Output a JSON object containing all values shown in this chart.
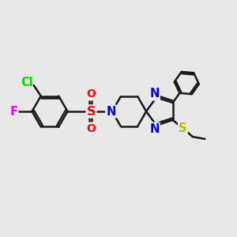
{
  "bg_color": "#e8e8e8",
  "bond_color": "#1a1a1a",
  "lw": 1.8,
  "atom_colors": {
    "Cl": "#00dd00",
    "F": "#ff00ff",
    "S_so2": "#ff0000",
    "O": "#ff0000",
    "N": "#0000ee",
    "S_et": "#bbbb00",
    "C": "#1a1a1a"
  },
  "fs": 10.5,
  "fs_small": 9.5
}
